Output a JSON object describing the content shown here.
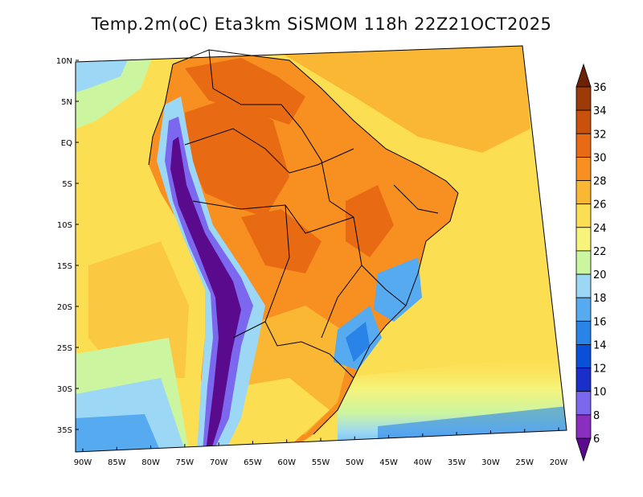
{
  "title": "Temp.2m(oC) Eta3km SiSMOM 118h 22Z21OCT2025",
  "axes": {
    "lat_labels": [
      "10N",
      "5N",
      "EQ",
      "5S",
      "10S",
      "15S",
      "20S",
      "25S",
      "30S",
      "35S"
    ],
    "lon_labels": [
      "90W",
      "85W",
      "80W",
      "75W",
      "70W",
      "65W",
      "60W",
      "55W",
      "50W",
      "45W",
      "40W",
      "35W",
      "30W",
      "25W",
      "20W"
    ]
  },
  "colorbar": {
    "labels": [
      "6",
      "8",
      "10",
      "12",
      "14",
      "16",
      "18",
      "20",
      "22",
      "24",
      "26",
      "28",
      "30",
      "32",
      "34",
      "36"
    ],
    "colors": [
      "#5a0a8c",
      "#8a2ec0",
      "#7b68ee",
      "#1a2fc9",
      "#0a4fd8",
      "#2a84e8",
      "#55aaf0",
      "#9cd8f5",
      "#ccf5a0",
      "#f6f47a",
      "#fcde52",
      "#fab733",
      "#f78f21",
      "#e86a12",
      "#c9510c",
      "#9c3a08",
      "#6b2205"
    ]
  },
  "colors": {
    "ocean_warm": "#fcde52",
    "ocean_cool": "#ccf5a0",
    "land_hot": "#f78f21",
    "land_hotter": "#e86a12",
    "andes_cold": "#5a0a8c",
    "border": "#000000"
  }
}
